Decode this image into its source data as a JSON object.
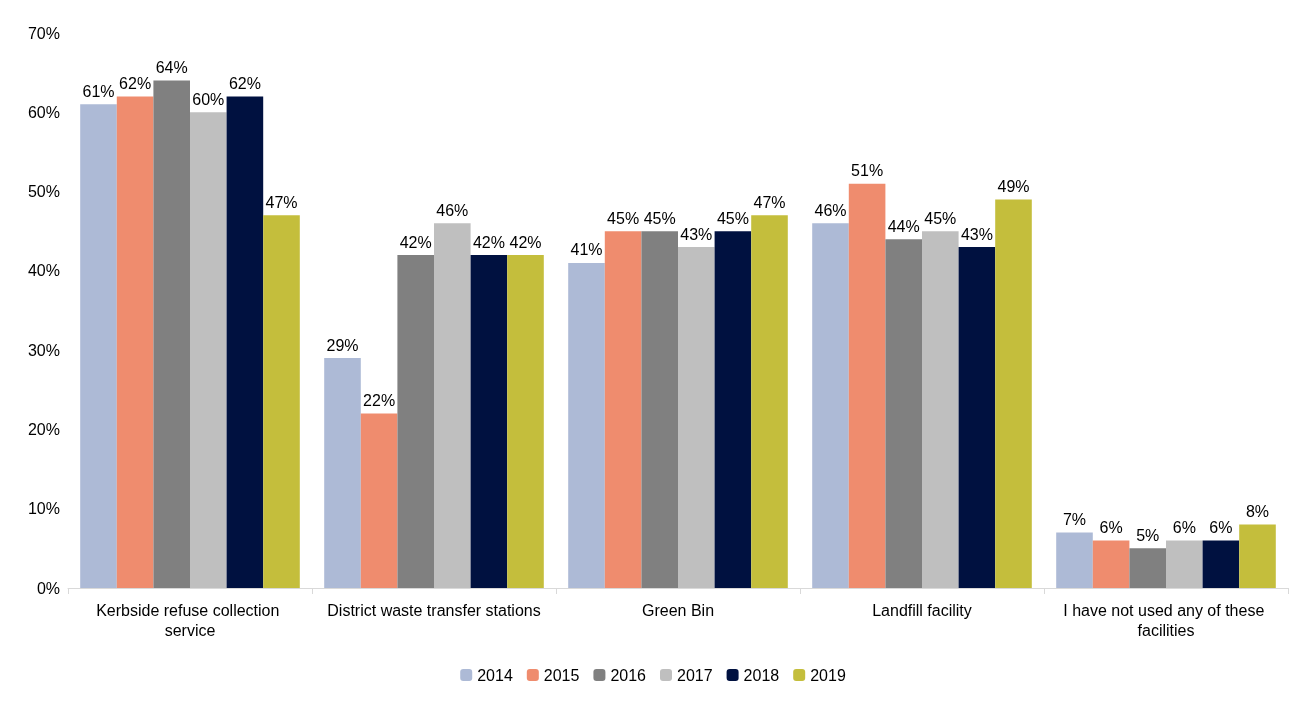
{
  "chart_data": {
    "type": "bar",
    "categories": [
      "Kerbside refuse collection service",
      "District waste transfer stations",
      "Green Bin",
      "Landfill facility",
      "I have not used any of these facilities"
    ],
    "series": [
      {
        "name": "2014",
        "color": "#adbad6",
        "values": [
          61,
          29,
          41,
          46,
          7
        ],
        "value_labels": [
          "61%",
          "29%",
          "41%",
          "46%",
          "7%"
        ]
      },
      {
        "name": "2015",
        "color": "#ef8c6e",
        "values": [
          62,
          22,
          45,
          51,
          6
        ],
        "value_labels": [
          "62%",
          "22%",
          "45%",
          "51%",
          "6%"
        ]
      },
      {
        "name": "2016",
        "color": "#808080",
        "values": [
          64,
          42,
          45,
          44,
          5
        ],
        "value_labels": [
          "64%",
          "42%",
          "45%",
          "44%",
          "5%"
        ]
      },
      {
        "name": "2017",
        "color": "#bfbfbf",
        "values": [
          60,
          46,
          43,
          45,
          6
        ],
        "value_labels": [
          "60%",
          "46%",
          "43%",
          "45%",
          "6%"
        ]
      },
      {
        "name": "2018",
        "color": "#001140",
        "values": [
          62,
          42,
          45,
          43,
          6
        ],
        "value_labels": [
          "62%",
          "42%",
          "45%",
          "43%",
          "6%"
        ]
      },
      {
        "name": "2019",
        "color": "#c4be3c",
        "values": [
          47,
          42,
          47,
          49,
          8
        ],
        "value_labels": [
          "47%",
          "42%",
          "47%",
          "49%",
          "8%"
        ]
      }
    ],
    "ylim": [
      0,
      70
    ],
    "yticks": [
      {
        "value": 0,
        "label": "0%"
      },
      {
        "value": 10,
        "label": "10%"
      },
      {
        "value": 20,
        "label": "20%"
      },
      {
        "value": 30,
        "label": "30%"
      },
      {
        "value": 40,
        "label": "40%"
      },
      {
        "value": 50,
        "label": "50%"
      },
      {
        "value": 60,
        "label": "60%"
      },
      {
        "value": 70,
        "label": "70%"
      }
    ],
    "grid": false,
    "legend": "bottom"
  }
}
